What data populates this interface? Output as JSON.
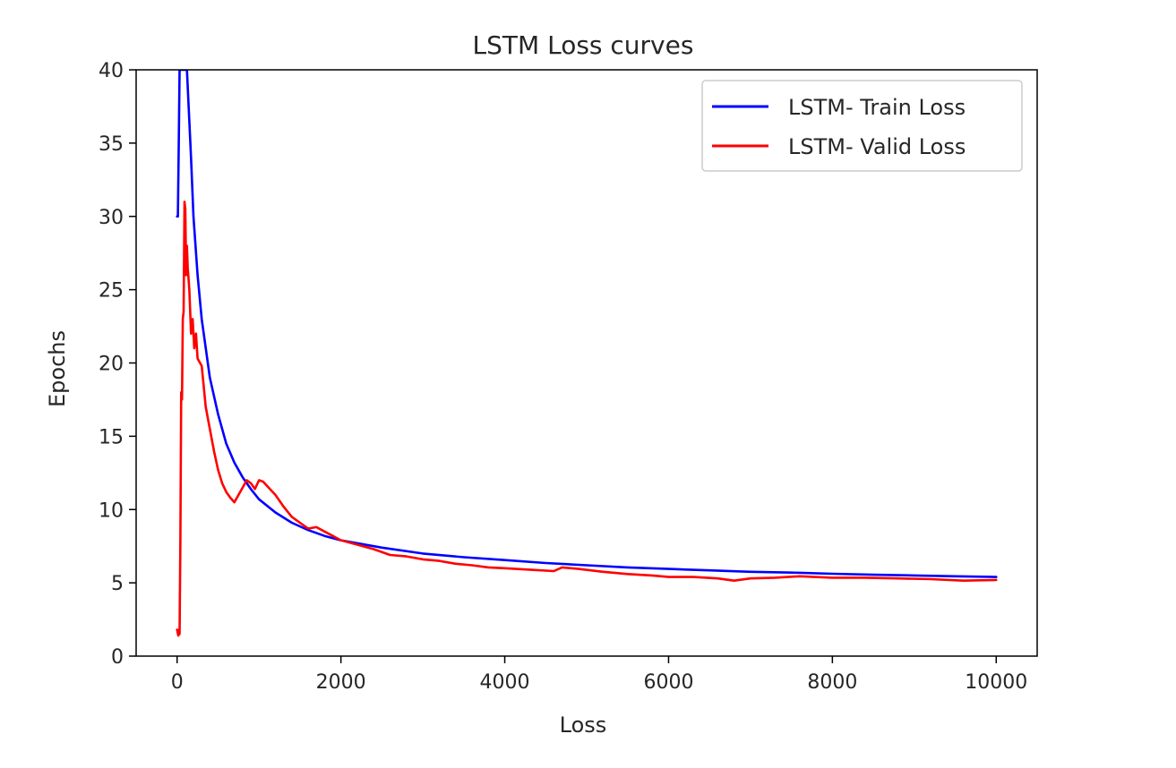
{
  "chart_data": {
    "type": "line",
    "title": "LSTM Loss curves",
    "xlabel": "Loss",
    "ylabel": "Epochs",
    "xlim": [
      -500,
      10500
    ],
    "ylim": [
      0,
      40
    ],
    "xticks": [
      0,
      2000,
      4000,
      6000,
      8000,
      10000
    ],
    "xtick_labels": [
      "0",
      "2000",
      "4000",
      "6000",
      "8000",
      "10000"
    ],
    "yticks": [
      0,
      5,
      10,
      15,
      20,
      25,
      30,
      35,
      40
    ],
    "ytick_labels": [
      "0",
      "5",
      "10",
      "15",
      "20",
      "25",
      "30",
      "35",
      "40"
    ],
    "grid": false,
    "legend": {
      "placement": "top-right"
    },
    "series": [
      {
        "name": "LSTM- Train Loss",
        "color": "#0000ff",
        "points": [
          [
            0,
            30
          ],
          [
            10,
            30
          ],
          [
            20,
            35
          ],
          [
            30,
            40
          ],
          [
            120,
            40
          ],
          [
            170,
            34
          ],
          [
            200,
            30
          ],
          [
            250,
            26
          ],
          [
            300,
            23
          ],
          [
            400,
            19
          ],
          [
            500,
            16.5
          ],
          [
            600,
            14.5
          ],
          [
            700,
            13.2
          ],
          [
            800,
            12.2
          ],
          [
            900,
            11.4
          ],
          [
            1000,
            10.7
          ],
          [
            1200,
            9.8
          ],
          [
            1400,
            9.1
          ],
          [
            1600,
            8.6
          ],
          [
            1800,
            8.2
          ],
          [
            2000,
            7.9
          ],
          [
            2500,
            7.4
          ],
          [
            3000,
            7.0
          ],
          [
            3500,
            6.75
          ],
          [
            4000,
            6.55
          ],
          [
            4500,
            6.35
          ],
          [
            5000,
            6.2
          ],
          [
            5500,
            6.05
          ],
          [
            6000,
            5.95
          ],
          [
            6500,
            5.85
          ],
          [
            7000,
            5.75
          ],
          [
            7500,
            5.7
          ],
          [
            8000,
            5.62
          ],
          [
            8500,
            5.55
          ],
          [
            9000,
            5.5
          ],
          [
            9500,
            5.45
          ],
          [
            10000,
            5.4
          ]
        ]
      },
      {
        "name": "LSTM- Valid Loss",
        "color": "#ff0000",
        "points": [
          [
            0,
            1.8
          ],
          [
            15,
            1.4
          ],
          [
            25,
            1.8
          ],
          [
            30,
            1.5
          ],
          [
            40,
            8
          ],
          [
            50,
            18
          ],
          [
            60,
            17.5
          ],
          [
            70,
            23
          ],
          [
            80,
            23.5
          ],
          [
            90,
            31
          ],
          [
            100,
            30.5
          ],
          [
            110,
            26
          ],
          [
            120,
            28
          ],
          [
            130,
            26.5
          ],
          [
            150,
            25
          ],
          [
            170,
            22
          ],
          [
            190,
            23
          ],
          [
            210,
            21
          ],
          [
            230,
            22
          ],
          [
            250,
            20.3
          ],
          [
            300,
            19.8
          ],
          [
            350,
            17
          ],
          [
            400,
            15.5
          ],
          [
            450,
            14
          ],
          [
            500,
            12.7
          ],
          [
            550,
            11.8
          ],
          [
            600,
            11.2
          ],
          [
            650,
            10.8
          ],
          [
            700,
            10.5
          ],
          [
            750,
            11
          ],
          [
            800,
            11.5
          ],
          [
            850,
            12
          ],
          [
            900,
            11.8
          ],
          [
            950,
            11.4
          ],
          [
            1000,
            12
          ],
          [
            1050,
            11.9
          ],
          [
            1100,
            11.6
          ],
          [
            1200,
            11
          ],
          [
            1300,
            10.2
          ],
          [
            1400,
            9.5
          ],
          [
            1500,
            9.1
          ],
          [
            1600,
            8.7
          ],
          [
            1700,
            8.8
          ],
          [
            1800,
            8.5
          ],
          [
            1900,
            8.2
          ],
          [
            2000,
            7.9
          ],
          [
            2200,
            7.6
          ],
          [
            2400,
            7.3
          ],
          [
            2600,
            6.9
          ],
          [
            2800,
            6.8
          ],
          [
            3000,
            6.6
          ],
          [
            3200,
            6.5
          ],
          [
            3400,
            6.3
          ],
          [
            3600,
            6.2
          ],
          [
            3800,
            6.05
          ],
          [
            4000,
            6.0
          ],
          [
            4300,
            5.9
          ],
          [
            4600,
            5.8
          ],
          [
            4700,
            6.05
          ],
          [
            4900,
            5.95
          ],
          [
            5200,
            5.75
          ],
          [
            5500,
            5.6
          ],
          [
            5800,
            5.5
          ],
          [
            6000,
            5.4
          ],
          [
            6300,
            5.4
          ],
          [
            6600,
            5.3
          ],
          [
            6800,
            5.15
          ],
          [
            7000,
            5.3
          ],
          [
            7300,
            5.35
          ],
          [
            7600,
            5.45
          ],
          [
            8000,
            5.35
          ],
          [
            8400,
            5.35
          ],
          [
            8800,
            5.3
          ],
          [
            9200,
            5.25
          ],
          [
            9600,
            5.15
          ],
          [
            10000,
            5.2
          ]
        ]
      }
    ]
  }
}
